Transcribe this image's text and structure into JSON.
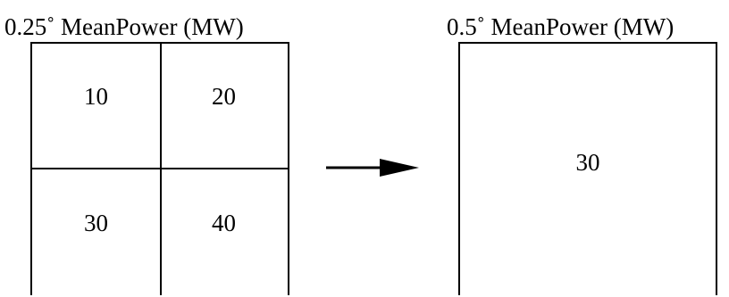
{
  "left": {
    "title": "0.25˚ MeanPower (MW)",
    "cells": [
      [
        "10",
        "20"
      ],
      [
        "30",
        "40"
      ]
    ]
  },
  "right": {
    "title": "0.5˚ MeanPower (MW)",
    "value": "30"
  },
  "colors": {
    "line": "#000000",
    "background": "#ffffff"
  }
}
